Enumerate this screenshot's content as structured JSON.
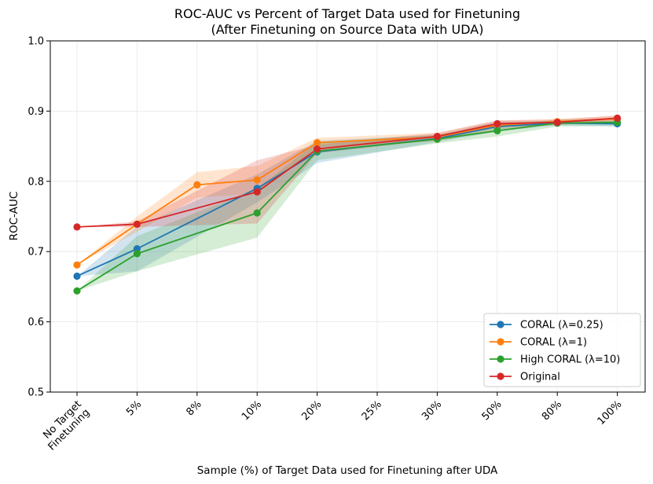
{
  "chart_data": {
    "type": "line",
    "title": "ROC-AUC vs Percent of Target Data used for Finetuning",
    "subtitle": "(After Finetuning on Source Data with UDA)",
    "xlabel": "Sample (%) of Target Data used for Finetuning after UDA",
    "ylabel": "ROC-AUC",
    "categories": [
      "No Target Finetuning",
      "5%",
      "8%",
      "10%",
      "20%",
      "25%",
      "30%",
      "50%",
      "80%",
      "100%"
    ],
    "ylim": [
      0.5,
      1.0
    ],
    "yticks": [
      "0.5",
      "0.6",
      "0.7",
      "0.8",
      "0.9",
      "1.0"
    ],
    "grid": true,
    "legend_position": "lower-right",
    "series": [
      {
        "name": "CORAL (λ=0.25)",
        "color": "#1f77b4",
        "points": [
          [
            0,
            0.665
          ],
          [
            1,
            0.704
          ],
          [
            3,
            0.79
          ],
          [
            4,
            0.842
          ],
          [
            6,
            0.861
          ],
          [
            7,
            0.878
          ],
          [
            8,
            0.883
          ],
          [
            9,
            0.882
          ]
        ],
        "band": [
          [
            0,
            0.665,
            0.665
          ],
          [
            1,
            0.672,
            0.736
          ],
          [
            3,
            0.77,
            0.81
          ],
          [
            4,
            0.826,
            0.858
          ],
          [
            6,
            0.856,
            0.866
          ],
          [
            7,
            0.871,
            0.885
          ],
          [
            8,
            0.88,
            0.886
          ],
          [
            9,
            0.878,
            0.886
          ]
        ]
      },
      {
        "name": "CORAL (λ=1)",
        "color": "#ff7f0e",
        "points": [
          [
            0,
            0.681
          ],
          [
            1,
            0.739
          ],
          [
            2,
            0.795
          ],
          [
            3,
            0.802
          ],
          [
            4,
            0.855
          ],
          [
            6,
            0.863
          ],
          [
            7,
            0.88
          ],
          [
            8,
            0.885
          ],
          [
            9,
            0.889
          ]
        ],
        "band": [
          [
            0,
            0.681,
            0.681
          ],
          [
            1,
            0.728,
            0.75
          ],
          [
            2,
            0.777,
            0.813
          ],
          [
            3,
            0.782,
            0.822
          ],
          [
            4,
            0.848,
            0.862
          ],
          [
            6,
            0.857,
            0.869
          ],
          [
            7,
            0.874,
            0.886
          ],
          [
            8,
            0.881,
            0.889
          ],
          [
            9,
            0.885,
            0.893
          ]
        ]
      },
      {
        "name": "High CORAL (λ=10)",
        "color": "#2ca02c",
        "points": [
          [
            0,
            0.644
          ],
          [
            1,
            0.697
          ],
          [
            3,
            0.755
          ],
          [
            4,
            0.843
          ],
          [
            6,
            0.86
          ],
          [
            7,
            0.872
          ],
          [
            8,
            0.883
          ],
          [
            9,
            0.884
          ]
        ],
        "band": [
          [
            0,
            0.644,
            0.644
          ],
          [
            1,
            0.672,
            0.722
          ],
          [
            3,
            0.72,
            0.79
          ],
          [
            4,
            0.83,
            0.856
          ],
          [
            6,
            0.854,
            0.866
          ],
          [
            7,
            0.864,
            0.88
          ],
          [
            8,
            0.878,
            0.888
          ],
          [
            9,
            0.879,
            0.889
          ]
        ]
      },
      {
        "name": "Original",
        "color": "#d62728",
        "points": [
          [
            0,
            0.735
          ],
          [
            1,
            0.739
          ],
          [
            3,
            0.785
          ],
          [
            4,
            0.846
          ],
          [
            6,
            0.864
          ],
          [
            7,
            0.882
          ],
          [
            8,
            0.884
          ],
          [
            9,
            0.89
          ]
        ],
        "band": [
          [
            0,
            0.735,
            0.735
          ],
          [
            1,
            0.735,
            0.743
          ],
          [
            3,
            0.74,
            0.83
          ],
          [
            4,
            0.84,
            0.852
          ],
          [
            6,
            0.859,
            0.869
          ],
          [
            7,
            0.877,
            0.887
          ],
          [
            8,
            0.88,
            0.888
          ],
          [
            9,
            0.886,
            0.894
          ]
        ]
      }
    ]
  }
}
